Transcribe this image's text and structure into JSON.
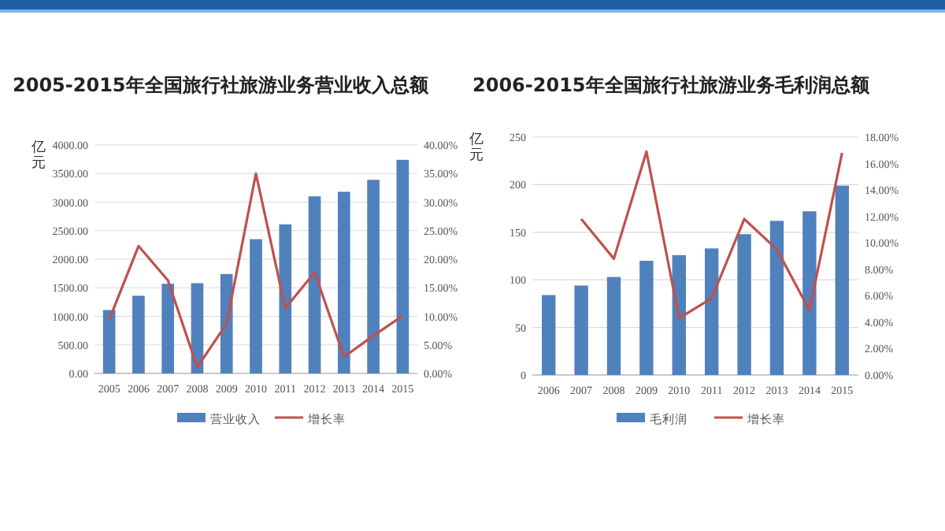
{
  "chart_data": [
    {
      "type": "bar",
      "title": "2005-2015年全国旅行社旅游业务营业收入总额",
      "ylabel": "亿元",
      "categories": [
        "2005",
        "2006",
        "2007",
        "2008",
        "2009",
        "2010",
        "2011",
        "2012",
        "2013",
        "2014",
        "2015"
      ],
      "series": [
        {
          "name": "营业收入",
          "color": "#4f81bd",
          "values": [
            1110,
            1360,
            1570,
            1580,
            1740,
            2350,
            2610,
            3100,
            3180,
            3390,
            3740
          ]
        },
        {
          "name": "增长率",
          "type": "line",
          "axis": "y2",
          "color": "#c0504d",
          "values": [
            9.4,
            22.3,
            16.3,
            1.1,
            8.7,
            35.0,
            11.4,
            17.7,
            2.9,
            6.6,
            10.1
          ]
        }
      ],
      "ylim": [
        0,
        4000
      ],
      "yticks": [
        {
          "value": 0,
          "label": "0.00"
        },
        {
          "value": 500,
          "label": "500.00"
        },
        {
          "value": 1000,
          "label": "1000.00"
        },
        {
          "value": 1500,
          "label": "1500.00"
        },
        {
          "value": 2000,
          "label": "2000.00"
        },
        {
          "value": 2500,
          "label": "2500.00"
        },
        {
          "value": 3000,
          "label": "3000.00"
        },
        {
          "value": 3500,
          "label": "3500.00"
        },
        {
          "value": 4000,
          "label": "4000.00"
        }
      ],
      "y2lim": [
        0,
        40
      ],
      "y2ticks": [
        {
          "value": 0,
          "label": "0.00%"
        },
        {
          "value": 5,
          "label": "5.00%"
        },
        {
          "value": 10,
          "label": "10.00%"
        },
        {
          "value": 15,
          "label": "15.00%"
        },
        {
          "value": 20,
          "label": "20.00%"
        },
        {
          "value": 25,
          "label": "25.00%"
        },
        {
          "value": 30,
          "label": "30.00%"
        },
        {
          "value": 35,
          "label": "35.00%"
        },
        {
          "value": 40,
          "label": "40.00%"
        }
      ],
      "grid": "y",
      "legend": "bottom"
    },
    {
      "type": "bar",
      "title": "2006-2015年全国旅行社旅游业务毛利润总额",
      "ylabel": "亿元",
      "categories": [
        "2006",
        "2007",
        "2008",
        "2009",
        "2010",
        "2011",
        "2012",
        "2013",
        "2014",
        "2015"
      ],
      "series": [
        {
          "name": "毛利润",
          "color": "#4f81bd",
          "values": [
            84,
            94,
            103,
            120,
            126,
            133,
            148,
            162,
            172,
            199
          ]
        },
        {
          "name": "增长率",
          "type": "line",
          "axis": "y2",
          "color": "#c0504d",
          "values": [
            null,
            11.8,
            8.8,
            16.9,
            4.3,
            5.8,
            11.8,
            9.5,
            4.9,
            16.8
          ]
        }
      ],
      "ylim": [
        0,
        250
      ],
      "yticks": [
        0,
        50,
        100,
        150,
        200,
        250
      ],
      "y2lim": [
        0,
        18
      ],
      "y2ticks": [
        {
          "value": 0,
          "label": "0.00%"
        },
        {
          "value": 2,
          "label": "2.00%"
        },
        {
          "value": 4,
          "label": "4.00%"
        },
        {
          "value": 6,
          "label": "6.00%"
        },
        {
          "value": 8,
          "label": "8.00%"
        },
        {
          "value": 10,
          "label": "10.00%"
        },
        {
          "value": 12,
          "label": "12.00%"
        },
        {
          "value": 14,
          "label": "14.00%"
        },
        {
          "value": 16,
          "label": "16.00%"
        },
        {
          "value": 18,
          "label": "18.00%"
        }
      ],
      "grid": "y",
      "legend": "bottom"
    }
  ]
}
